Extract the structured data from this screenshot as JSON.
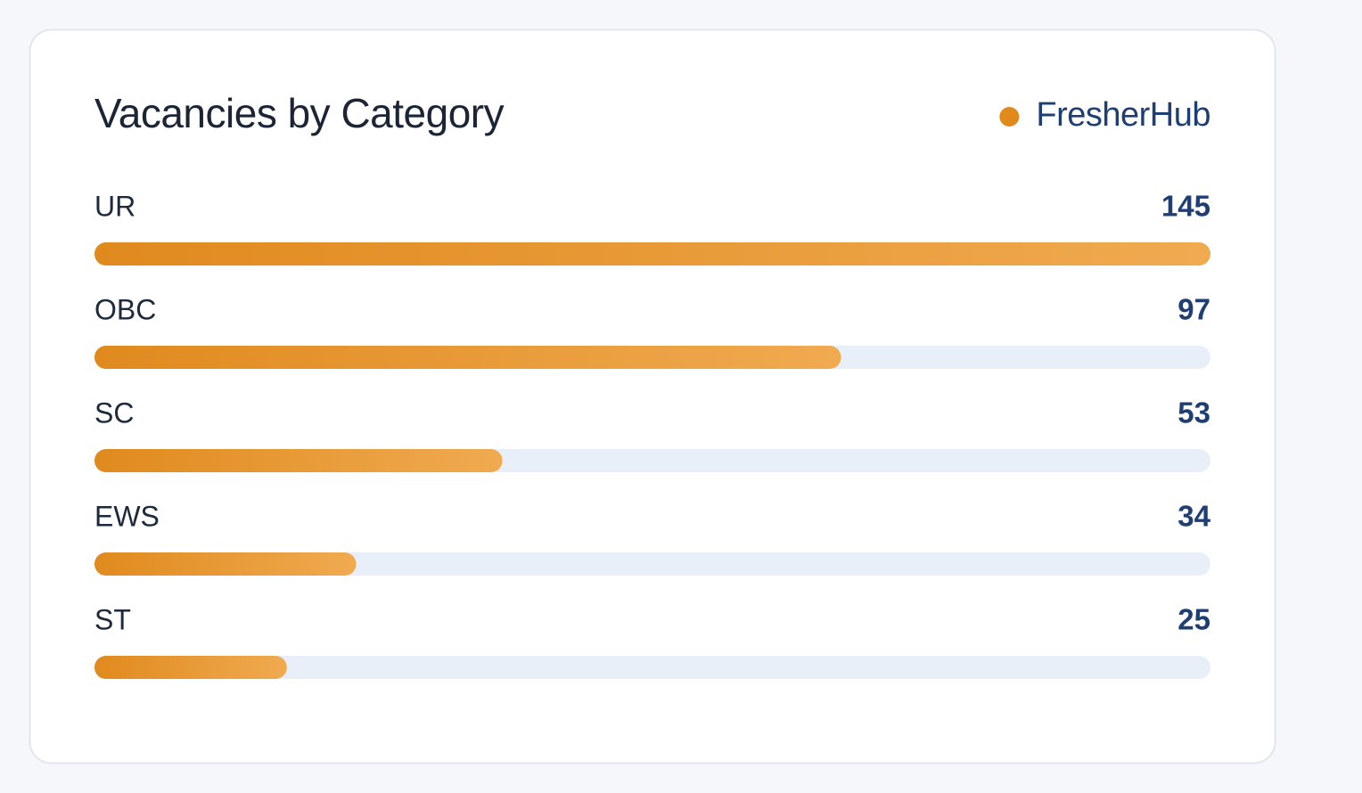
{
  "chart_data": {
    "type": "bar",
    "orientation": "horizontal",
    "title": "Vacancies by Category",
    "categories": [
      "UR",
      "OBC",
      "SC",
      "EWS",
      "ST"
    ],
    "series": [
      {
        "name": "FresherHub",
        "color": "#e08a1e",
        "values": [
          145,
          97,
          53,
          34,
          25
        ]
      }
    ],
    "legend": "top-right"
  }
}
